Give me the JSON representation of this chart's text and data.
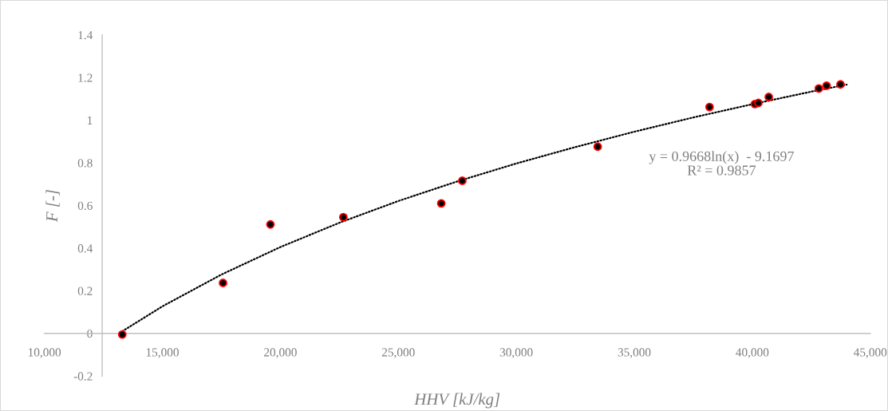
{
  "chart_data": {
    "type": "scatter",
    "xlabel": "HHV [kJ/kg]",
    "ylabel": "F [-]",
    "annotations": [
      "y = 0.9668ln(x)  - 9.1697\nR² = 0.9857"
    ],
    "xlim": [
      10000,
      45000
    ],
    "xticks": [
      {
        "value": 10000,
        "label": "10,000"
      },
      {
        "value": 15000,
        "label": "15,000"
      },
      {
        "value": 20000,
        "label": "20,000"
      },
      {
        "value": 25000,
        "label": "25,000"
      },
      {
        "value": 30000,
        "label": "30,000"
      },
      {
        "value": 35000,
        "label": "35,000"
      },
      {
        "value": 40000,
        "label": "40,000"
      },
      {
        "value": 45000,
        "label": "45,000"
      }
    ],
    "ylim": [
      -0.2,
      1.4
    ],
    "yticks": [
      -0.2,
      0,
      0.2,
      0.4,
      0.6,
      0.8,
      1,
      1.2,
      1.4
    ],
    "grid": false,
    "legend": false,
    "series": [
      {
        "color": "#000000",
        "marker": "circle",
        "x": [
          13300,
          17570,
          19580,
          22670,
          26820,
          27710,
          33450,
          38190,
          40110,
          40260,
          40700,
          42820,
          43150,
          43740
        ],
        "values": [
          -0.005,
          0.237,
          0.511,
          0.545,
          0.61,
          0.716,
          0.876,
          1.062,
          1.076,
          1.081,
          1.109,
          1.149,
          1.162,
          1.168
        ]
      },
      {
        "type": "line",
        "color": "#000000",
        "line_style": "dotted",
        "marker": "none",
        "x": [
          13300,
          15000,
          17500,
          20000,
          22500,
          25000,
          27500,
          30000,
          32500,
          35000,
          37500,
          40000,
          42500,
          44000
        ],
        "values": [
          0.01,
          0.127,
          0.276,
          0.405,
          0.519,
          0.621,
          0.713,
          0.797,
          0.874,
          0.946,
          1.013,
          1.075,
          1.134,
          1.167
        ]
      }
    ]
  }
}
